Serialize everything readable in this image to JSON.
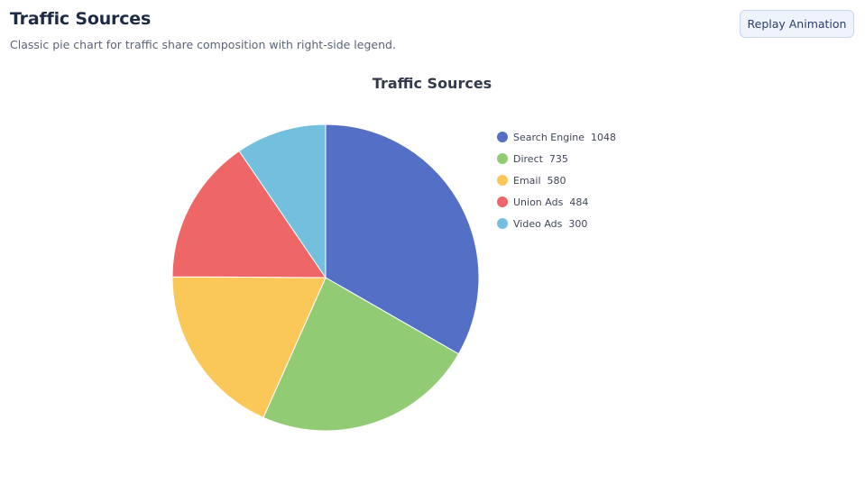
{
  "header": {
    "title": "Traffic Sources",
    "subtitle": "Classic pie chart for traffic share composition with right-side legend.",
    "replay_label": "Replay Animation"
  },
  "chart_data": {
    "type": "pie",
    "title": "Traffic Sources",
    "legend_position": "right",
    "slices": [
      {
        "name": "Search Engine",
        "value": 1048,
        "color": "#5470c6"
      },
      {
        "name": "Direct",
        "value": 735,
        "color": "#91cc75"
      },
      {
        "name": "Email",
        "value": 580,
        "color": "#fac858"
      },
      {
        "name": "Union Ads",
        "value": 484,
        "color": "#ee6666"
      },
      {
        "name": "Video Ads",
        "value": 300,
        "color": "#73c0de"
      }
    ]
  }
}
